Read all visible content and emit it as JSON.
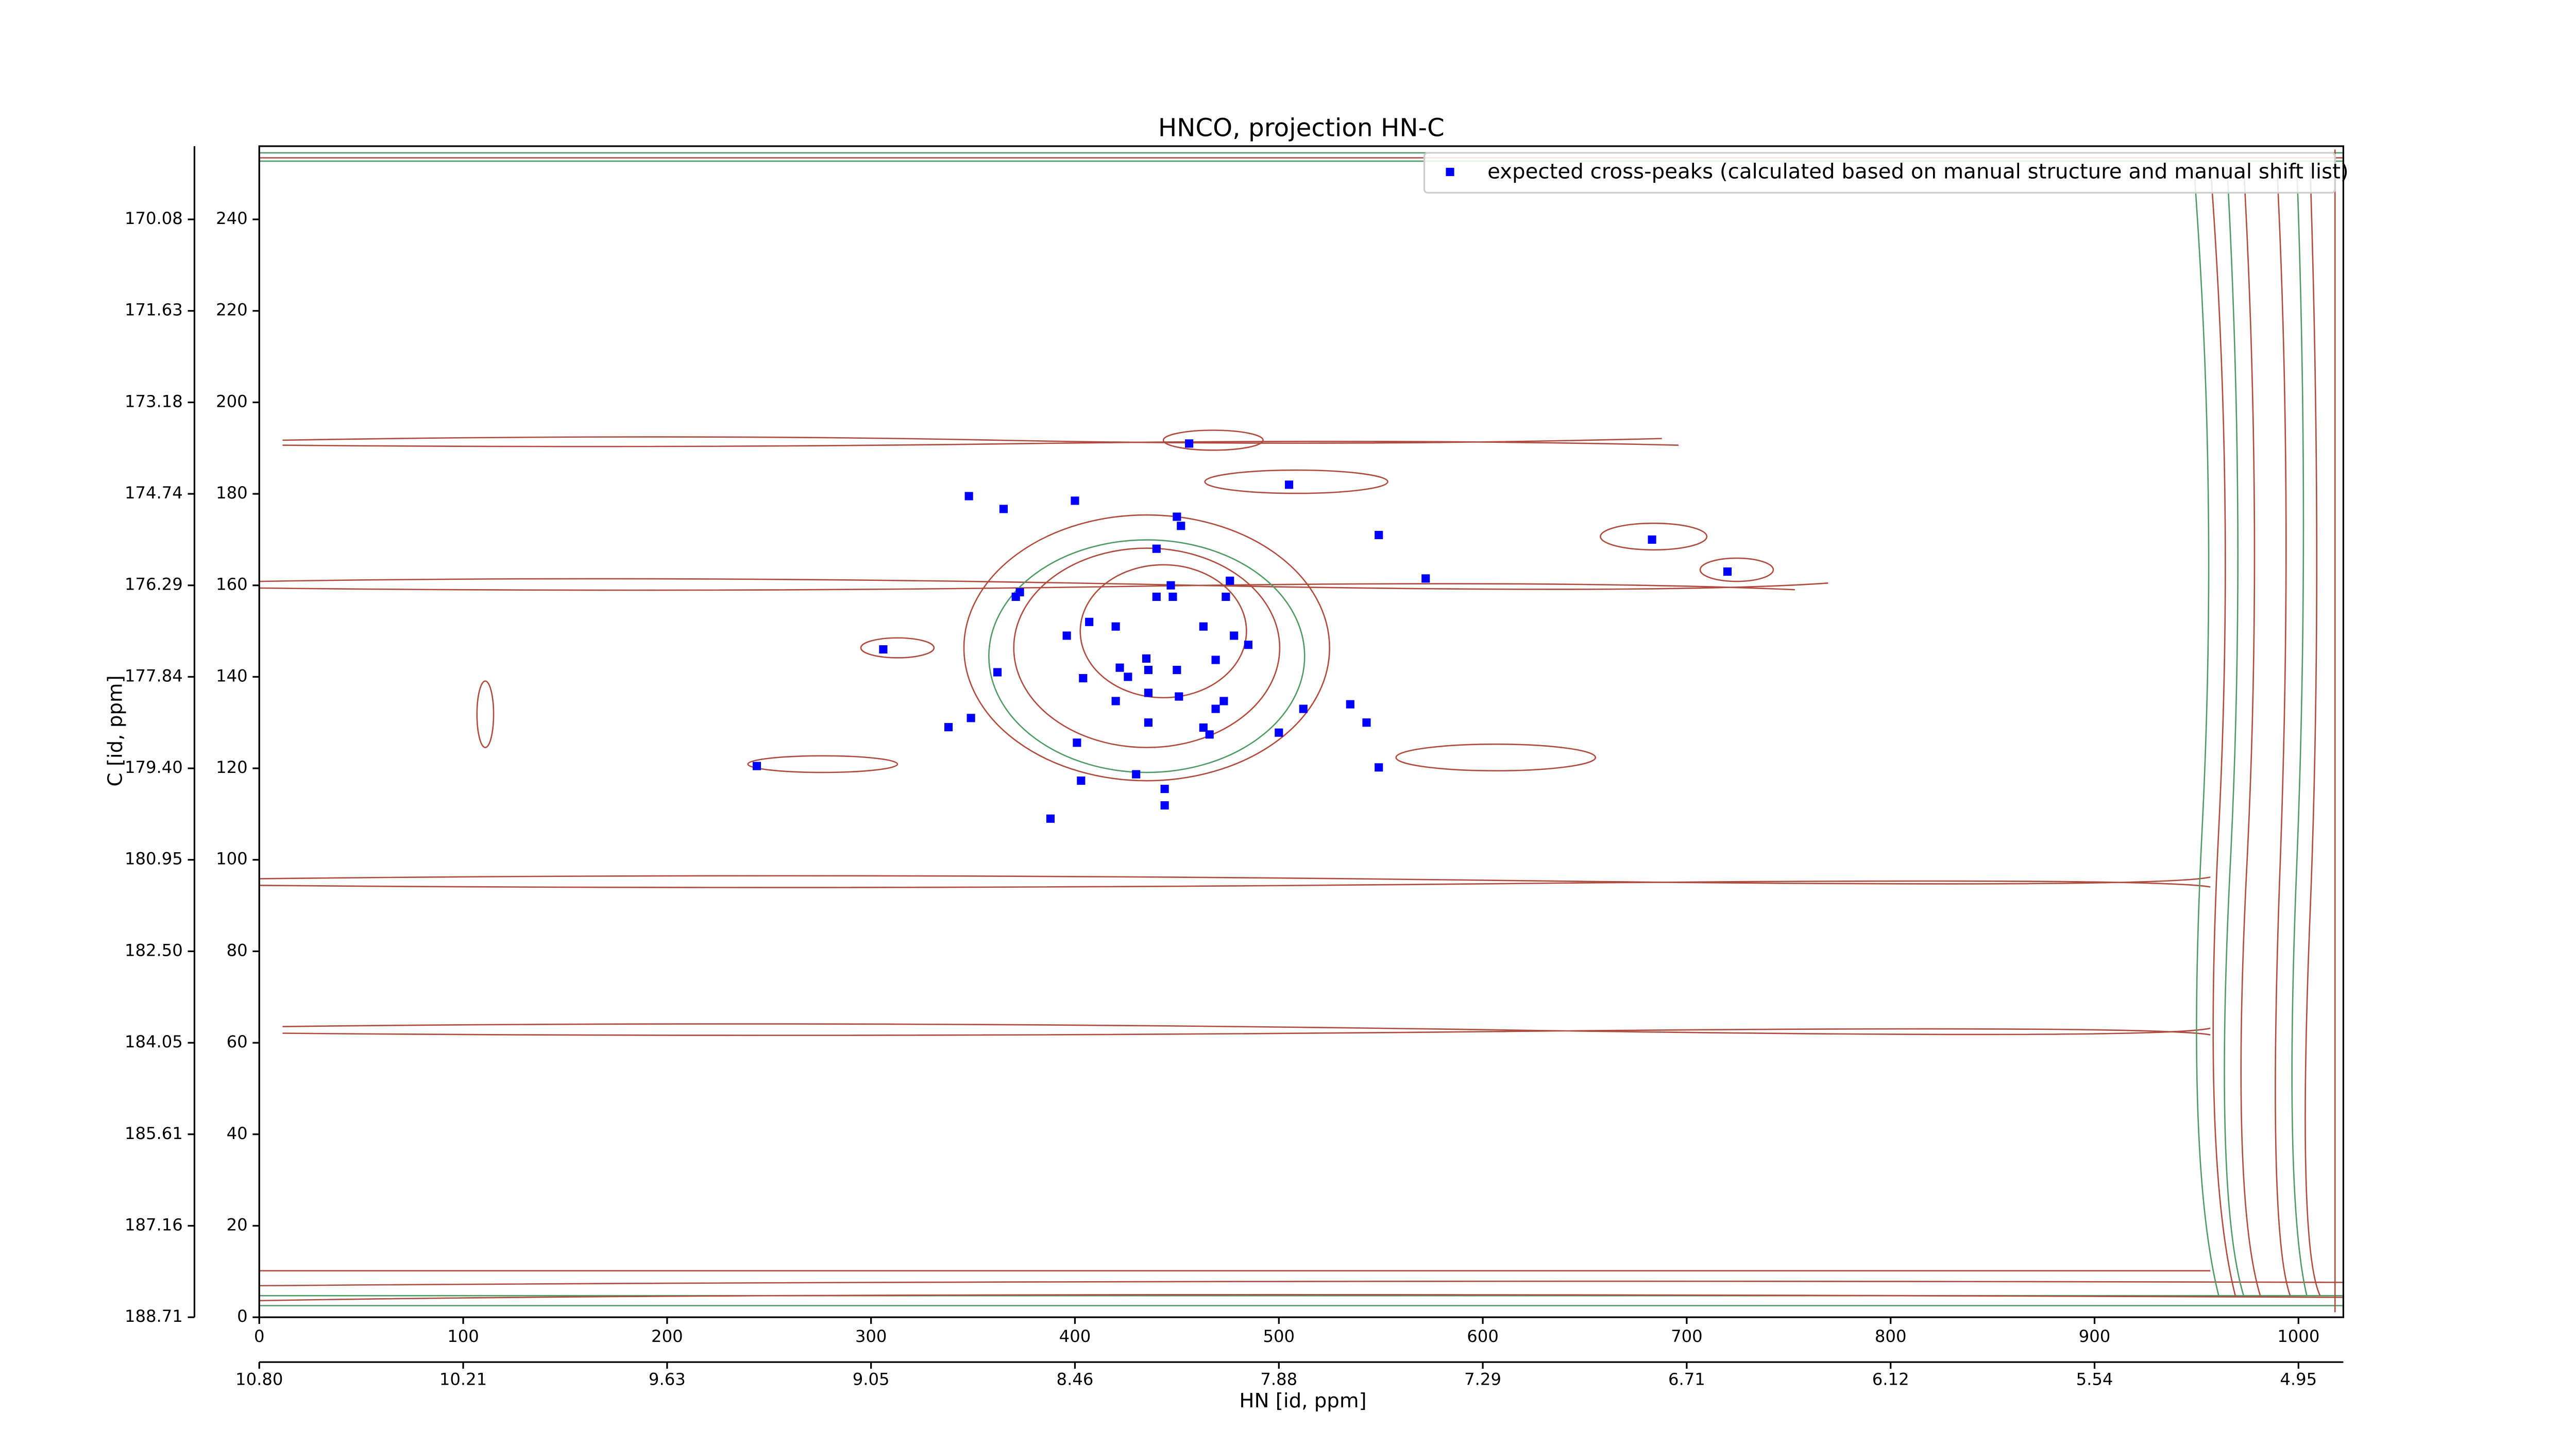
{
  "chart_data": {
    "type": "scatter",
    "title": "HNCO, projection HN-C",
    "x_label": "HN [id, ppm]",
    "y_label": "C [id, ppm]",
    "legend_position": "upper right",
    "series": [
      {
        "name": "expected cross-peaks (calculated based on manual structure and manual shift list)",
        "color": "#0000ff",
        "x": [
          348,
          365,
          400,
          456,
          505,
          450,
          452,
          549,
          683,
          440,
          720,
          572,
          476,
          447,
          373,
          371,
          448,
          474,
          440,
          407,
          420,
          463,
          396,
          478,
          485,
          306,
          435,
          469,
          422,
          436,
          450,
          362,
          426,
          404,
          436,
          420,
          473,
          535,
          512,
          469,
          451,
          349,
          436,
          338,
          543,
          463,
          500,
          466,
          401,
          244,
          549,
          430,
          403,
          444,
          444,
          388
        ],
        "values": [
          179.5,
          176.7,
          178.5,
          191,
          182,
          175,
          173,
          171,
          170,
          168,
          163,
          161.5,
          161,
          160,
          158.5,
          157.5,
          157.5,
          157.5,
          157.5,
          152,
          151,
          151,
          149,
          149,
          147,
          146,
          144,
          143.7,
          142,
          141.5,
          141.5,
          141,
          140,
          139.7,
          136.5,
          134.7,
          134.7,
          134,
          133,
          133,
          135.7,
          131,
          130,
          129,
          130,
          128.9,
          127.8,
          127.4,
          125.6,
          120.5,
          120.2,
          118.7,
          117.3,
          115.5,
          111.9,
          109
        ]
      }
    ],
    "xlim": [
      0,
      1022
    ],
    "ylim": [
      0,
      256
    ],
    "xticks": [
      0,
      100,
      200,
      300,
      400,
      500,
      600,
      700,
      800,
      900,
      1000
    ],
    "yticks": [
      0,
      20,
      40,
      60,
      80,
      100,
      120,
      140,
      160,
      180,
      200,
      220,
      240
    ],
    "x2ticks": [
      {
        "value": 0,
        "label": "10.80"
      },
      {
        "value": 100,
        "label": "10.21"
      },
      {
        "value": 200,
        "label": "9.63"
      },
      {
        "value": 300,
        "label": "9.05"
      },
      {
        "value": 400,
        "label": "8.46"
      },
      {
        "value": 500,
        "label": "7.88"
      },
      {
        "value": 600,
        "label": "7.29"
      },
      {
        "value": 700,
        "label": "6.71"
      },
      {
        "value": 800,
        "label": "6.12"
      },
      {
        "value": 900,
        "label": "5.54"
      },
      {
        "value": 1000,
        "label": "4.95"
      }
    ],
    "y2ticks": [
      {
        "value": 0,
        "label": "188.71"
      },
      {
        "value": 20,
        "label": "187.16"
      },
      {
        "value": 40,
        "label": "185.61"
      },
      {
        "value": 60,
        "label": "184.05"
      },
      {
        "value": 80,
        "label": "182.50"
      },
      {
        "value": 100,
        "label": "180.95"
      },
      {
        "value": 120,
        "label": "179.40"
      },
      {
        "value": 140,
        "label": "177.84"
      },
      {
        "value": 160,
        "label": "176.29"
      },
      {
        "value": 180,
        "label": "174.74"
      },
      {
        "value": 200,
        "label": "173.18"
      },
      {
        "value": 220,
        "label": "171.63"
      },
      {
        "value": 240,
        "label": "170.08"
      }
    ]
  }
}
